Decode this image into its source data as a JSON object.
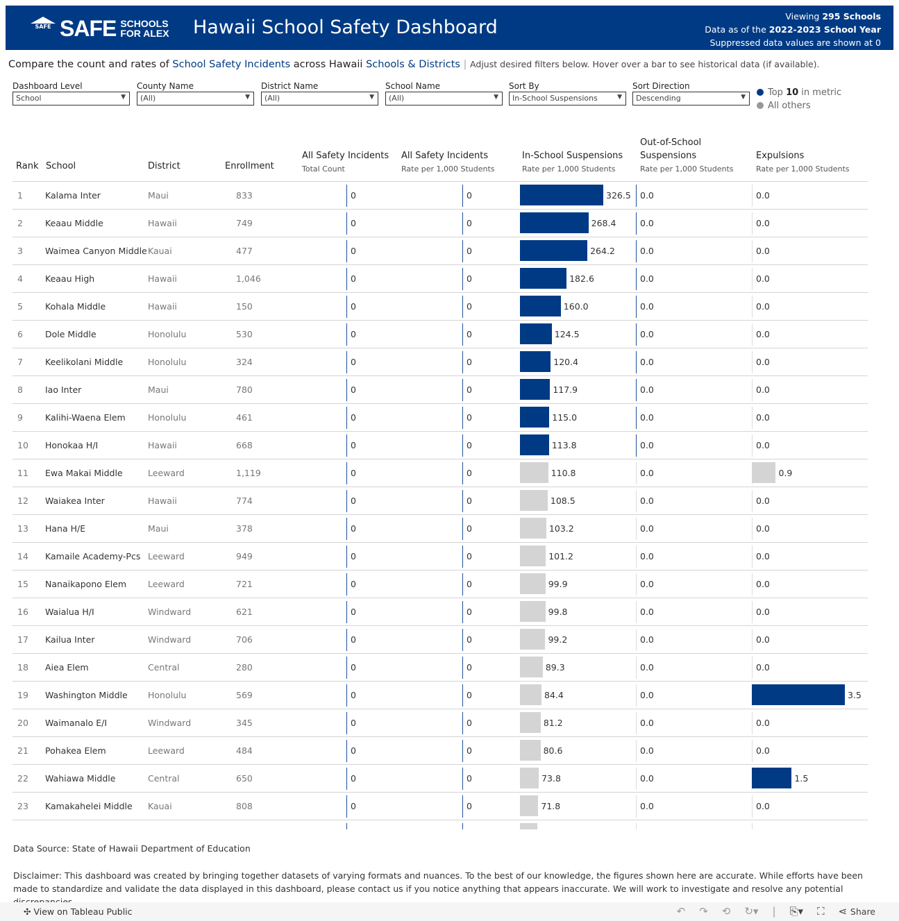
{
  "header": {
    "logo_text": "SAFE SCHOOLS FOR ALEX",
    "title": "Hawaii School Safety Dashboard",
    "viewing_prefix": "Viewing ",
    "viewing_value": "295 Schools",
    "year_prefix": "Data as of the ",
    "year_value": "2022-2023 School Year",
    "suppressed": "Suppressed data values are shown at 0"
  },
  "intro": {
    "p1": "Compare the count and rates of ",
    "l1": "School Safety Incidents",
    "p2": " across Hawaii ",
    "l2": "Schools & Districts",
    "p3": " | ",
    "p4": "Adjust desired filters below. Hover over a bar to see historical data (if available)."
  },
  "filters": [
    {
      "label": "Dashboard Level",
      "value": "School"
    },
    {
      "label": "County Name",
      "value": "(All)"
    },
    {
      "label": "District Name",
      "value": "(All)"
    },
    {
      "label": "School Name",
      "value": "(All)"
    },
    {
      "label": "Sort By",
      "value": "In-School Suspensions"
    },
    {
      "label": "Sort Direction",
      "value": "Descending"
    }
  ],
  "legend": {
    "top_prefix": "Top ",
    "top_n": "10",
    "top_suffix": " in metric",
    "others": "All others"
  },
  "colors": {
    "brand": "#003a84",
    "highlight": "#003a84",
    "other": "#d4d4d4"
  },
  "columns": {
    "rank": "Rank",
    "school": "School",
    "district": "District",
    "enrollment": "Enrollment",
    "asi_count": "All Safety Incidents",
    "asi_count_sub": "Total Count",
    "asi_rate": "All Safety Incidents",
    "asi_rate_sub": "Rate per 1,000 Students",
    "iss": "In-School Suspensions",
    "iss_sub": "Rate per 1,000 Students",
    "oss": "Out-of-School Suspensions",
    "oss_sub": "Rate per 1,000 Students",
    "exp": "Expulsions",
    "exp_sub": "Rate per 1,000 Students"
  },
  "rows": [
    {
      "rank": "1",
      "school": "Kalama Inter",
      "district": "Maui",
      "enrollment": "833",
      "asi_count": "0",
      "asi_rate": "0",
      "iss": 326.5,
      "oss": "0.0",
      "exp": 0.0,
      "exp_top": false
    },
    {
      "rank": "2",
      "school": "Keaau Middle",
      "district": "Hawaii",
      "enrollment": "749",
      "asi_count": "0",
      "asi_rate": "0",
      "iss": 268.4,
      "oss": "0.0",
      "exp": 0.0,
      "exp_top": false
    },
    {
      "rank": "3",
      "school": "Waimea Canyon Middle",
      "district": "Kauai",
      "enrollment": "477",
      "asi_count": "0",
      "asi_rate": "0",
      "iss": 264.2,
      "oss": "0.0",
      "exp": 0.0,
      "exp_top": false
    },
    {
      "rank": "4",
      "school": "Keaau High",
      "district": "Hawaii",
      "enrollment": "1,046",
      "asi_count": "0",
      "asi_rate": "0",
      "iss": 182.6,
      "oss": "0.0",
      "exp": 0.0,
      "exp_top": false
    },
    {
      "rank": "5",
      "school": "Kohala Middle",
      "district": "Hawaii",
      "enrollment": "150",
      "asi_count": "0",
      "asi_rate": "0",
      "iss": 160.0,
      "oss": "0.0",
      "exp": 0.0,
      "exp_top": false
    },
    {
      "rank": "6",
      "school": "Dole Middle",
      "district": "Honolulu",
      "enrollment": "530",
      "asi_count": "0",
      "asi_rate": "0",
      "iss": 124.5,
      "oss": "0.0",
      "exp": 0.0,
      "exp_top": false
    },
    {
      "rank": "7",
      "school": "Keelikolani Middle",
      "district": "Honolulu",
      "enrollment": "324",
      "asi_count": "0",
      "asi_rate": "0",
      "iss": 120.4,
      "oss": "0.0",
      "exp": 0.0,
      "exp_top": false
    },
    {
      "rank": "8",
      "school": "Iao Inter",
      "district": "Maui",
      "enrollment": "780",
      "asi_count": "0",
      "asi_rate": "0",
      "iss": 117.9,
      "oss": "0.0",
      "exp": 0.0,
      "exp_top": false
    },
    {
      "rank": "9",
      "school": "Kalihi-Waena Elem",
      "district": "Honolulu",
      "enrollment": "461",
      "asi_count": "0",
      "asi_rate": "0",
      "iss": 115.0,
      "oss": "0.0",
      "exp": 0.0,
      "exp_top": false
    },
    {
      "rank": "10",
      "school": "Honokaa H/I",
      "district": "Hawaii",
      "enrollment": "668",
      "asi_count": "0",
      "asi_rate": "0",
      "iss": 113.8,
      "oss": "0.0",
      "exp": 0.0,
      "exp_top": false
    },
    {
      "rank": "11",
      "school": "Ewa Makai Middle",
      "district": "Leeward",
      "enrollment": "1,119",
      "asi_count": "0",
      "asi_rate": "0",
      "iss": 110.8,
      "oss": "0.0",
      "exp": 0.9,
      "exp_top": false
    },
    {
      "rank": "12",
      "school": "Waiakea Inter",
      "district": "Hawaii",
      "enrollment": "774",
      "asi_count": "0",
      "asi_rate": "0",
      "iss": 108.5,
      "oss": "0.0",
      "exp": 0.0,
      "exp_top": false
    },
    {
      "rank": "13",
      "school": "Hana H/E",
      "district": "Maui",
      "enrollment": "378",
      "asi_count": "0",
      "asi_rate": "0",
      "iss": 103.2,
      "oss": "0.0",
      "exp": 0.0,
      "exp_top": false
    },
    {
      "rank": "14",
      "school": "Kamaile Academy-Pcs",
      "district": "Leeward",
      "enrollment": "949",
      "asi_count": "0",
      "asi_rate": "0",
      "iss": 101.2,
      "oss": "0.0",
      "exp": 0.0,
      "exp_top": false
    },
    {
      "rank": "15",
      "school": "Nanaikapono Elem",
      "district": "Leeward",
      "enrollment": "721",
      "asi_count": "0",
      "asi_rate": "0",
      "iss": 99.9,
      "oss": "0.0",
      "exp": 0.0,
      "exp_top": false
    },
    {
      "rank": "16",
      "school": "Waialua H/I",
      "district": "Windward",
      "enrollment": "621",
      "asi_count": "0",
      "asi_rate": "0",
      "iss": 99.8,
      "oss": "0.0",
      "exp": 0.0,
      "exp_top": false
    },
    {
      "rank": "17",
      "school": "Kailua Inter",
      "district": "Windward",
      "enrollment": "706",
      "asi_count": "0",
      "asi_rate": "0",
      "iss": 99.2,
      "oss": "0.0",
      "exp": 0.0,
      "exp_top": false
    },
    {
      "rank": "18",
      "school": "Aiea Elem",
      "district": "Central",
      "enrollment": "280",
      "asi_count": "0",
      "asi_rate": "0",
      "iss": 89.3,
      "oss": "0.0",
      "exp": 0.0,
      "exp_top": false
    },
    {
      "rank": "19",
      "school": "Washington Middle",
      "district": "Honolulu",
      "enrollment": "569",
      "asi_count": "0",
      "asi_rate": "0",
      "iss": 84.4,
      "oss": "0.0",
      "exp": 3.5,
      "exp_top": true
    },
    {
      "rank": "20",
      "school": "Waimanalo E/I",
      "district": "Windward",
      "enrollment": "345",
      "asi_count": "0",
      "asi_rate": "0",
      "iss": 81.2,
      "oss": "0.0",
      "exp": 0.0,
      "exp_top": false
    },
    {
      "rank": "21",
      "school": "Pohakea Elem",
      "district": "Leeward",
      "enrollment": "484",
      "asi_count": "0",
      "asi_rate": "0",
      "iss": 80.6,
      "oss": "0.0",
      "exp": 0.0,
      "exp_top": false
    },
    {
      "rank": "22",
      "school": "Wahiawa Middle",
      "district": "Central",
      "enrollment": "650",
      "asi_count": "0",
      "asi_rate": "0",
      "iss": 73.8,
      "oss": "0.0",
      "exp": 1.5,
      "exp_top": true
    },
    {
      "rank": "23",
      "school": "Kamakahelei Middle",
      "district": "Kauai",
      "enrollment": "808",
      "asi_count": "0",
      "asi_rate": "0",
      "iss": 71.8,
      "oss": "0.0",
      "exp": 0.0,
      "exp_top": false
    }
  ],
  "footer": {
    "source": "Data Source: State of Hawaii Department of Education",
    "disclaimer": "Disclaimer: This dashboard was created by bringing together datasets of varying formats and nuances. To the best of our knowledge, the figures shown here are accurate. While efforts have been made to standardize and validate the data displayed in this dashboard, please contact us if you notice anything that appears inaccurate. We will work to investigate and resolve any potential discrepancies.",
    "tableau": "View on Tableau Public",
    "share": "Share"
  }
}
